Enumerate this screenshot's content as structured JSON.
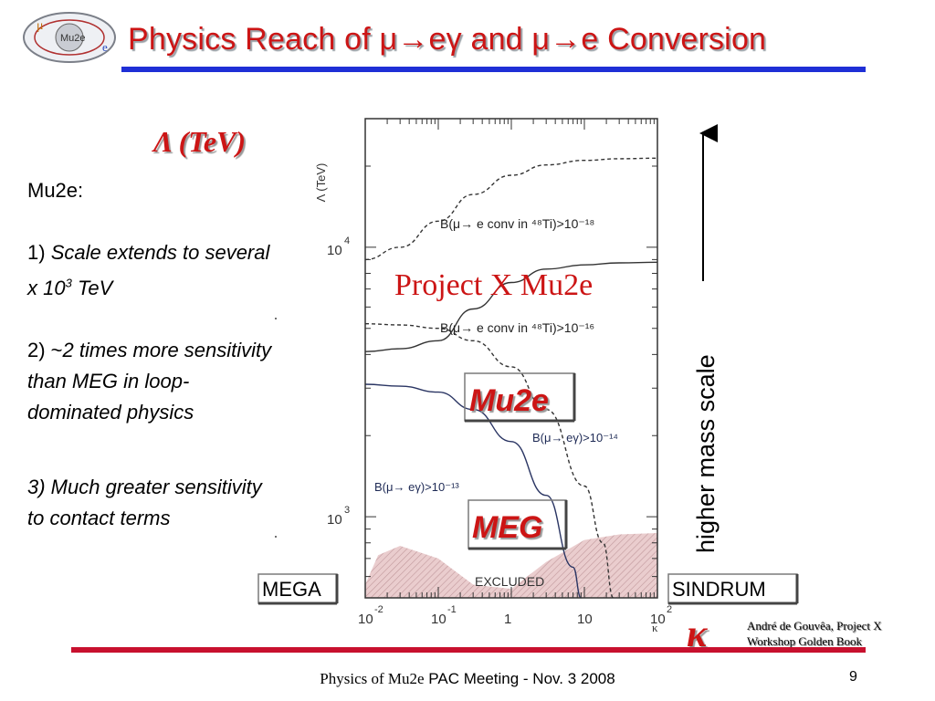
{
  "slide": {
    "title": "Physics Reach of μ→eγ and μ→e Conversion",
    "logo_text_top": "μ",
    "logo_text_mid": "Mu2e",
    "logo_text_bottom": "e",
    "footer_serif": "Physics of Mu2e",
    "footer_sans": "PAC Meeting - Nov. 3 2008",
    "page_number": "9",
    "colors": {
      "title": "#cc1515",
      "title_rule": "#1f2fd6",
      "bottom_rule": "#c8102e",
      "project_x": "#cc1515"
    }
  },
  "notes": {
    "heading": "Mu2e:",
    "item1_prefix": "1) ",
    "item1_text_a": "Scale extends to several x 10",
    "item1_sup": "3",
    "item1_text_b": " TeV",
    "item2_prefix": "2) ~",
    "item2_text": "2 times more sensitivity than MEG in loop-dominated physics",
    "item3_text": "3) Much greater sensitivity to contact terms"
  },
  "overlays": {
    "lambda_label": "Λ (TeV)",
    "project_x_label": "Project X Mu2e",
    "mu2e_label": "Mu2e",
    "meg_label": "MEG",
    "mega_label": "MEGA",
    "sindrum_label": "SINDRUM",
    "kappa_symbol": "κ",
    "mass_scale_label": "higher mass scale",
    "citation_line1": "André de Gouvêa, Project X",
    "citation_line2": "Workshop Golden Book"
  },
  "chart_data": {
    "type": "line",
    "xscale": "log",
    "yscale": "log",
    "xlim": [
      0.01,
      100
    ],
    "ylim": [
      500,
      30000
    ],
    "xlabel": "κ",
    "ylabel": "Λ (TeV)",
    "x_tick_labels": [
      {
        "base": "10",
        "exp": "-2",
        "value": 0.01
      },
      {
        "base": "10",
        "exp": "-1",
        "value": 0.1
      },
      {
        "base": "1",
        "exp": "",
        "value": 1
      },
      {
        "base": "10",
        "exp": "",
        "value": 10
      },
      {
        "base": "10",
        "exp": "2",
        "value": 100
      }
    ],
    "y_tick_labels": [
      {
        "base": "10",
        "exp": "3",
        "value": 1000
      },
      {
        "base": "10",
        "exp": "4",
        "value": 10000
      }
    ],
    "series": [
      {
        "name": "",
        "annotation": "B(μ→ e conv in ⁴⁸Ti)>10⁻¹⁸",
        "style": "dashed",
        "x": [
          0.01,
          0.03,
          0.1,
          0.3,
          1,
          3,
          10,
          30,
          100
        ],
        "y": [
          9000,
          10000,
          12500,
          15700,
          18500,
          20200,
          21000,
          21300,
          21400
        ]
      },
      {
        "name": "",
        "annotation": "B(μ→ e conv in ⁴⁸Ti)>10⁻¹⁶",
        "style": "solid",
        "x": [
          0.01,
          0.03,
          0.1,
          0.3,
          1,
          3,
          10,
          30,
          100
        ],
        "y": [
          4100,
          4200,
          4500,
          5900,
          7400,
          8300,
          8600,
          8750,
          8800
        ]
      },
      {
        "name": "",
        "annotation": "B(μ→ eγ)>10⁻¹⁴",
        "style": "dashed",
        "x": [
          0.01,
          0.03,
          0.1,
          0.3,
          1,
          3,
          10,
          18,
          25
        ],
        "y": [
          5200,
          5150,
          5000,
          4500,
          3600,
          2500,
          1300,
          800,
          500
        ]
      },
      {
        "name": "",
        "annotation": "B(μ→ eγ)>10⁻¹³",
        "style": "solid",
        "x": [
          0.01,
          0.03,
          0.1,
          0.3,
          1,
          3,
          7,
          9
        ],
        "y": [
          3100,
          3050,
          2900,
          2500,
          1900,
          1200,
          650,
          500
        ]
      }
    ],
    "excluded_label": "EXCLUDED",
    "excluded_region": {
      "x": [
        0.01,
        0.015,
        0.03,
        0.1,
        0.3,
        1,
        3,
        10,
        30,
        100
      ],
      "y": [
        560,
        720,
        780,
        700,
        560,
        540,
        680,
        820,
        860,
        870
      ]
    },
    "grid": false
  }
}
